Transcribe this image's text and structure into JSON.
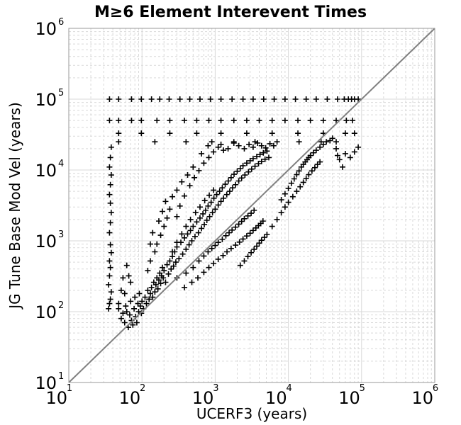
{
  "chart_data": {
    "type": "scatter",
    "title": "M≥6 Element Interevent Times",
    "xlabel": "UCERF3 (years)",
    "ylabel": "JG Tune Base Mod Vel (years)",
    "xscale": "log",
    "yscale": "log",
    "xlim": [
      10,
      1000000
    ],
    "ylim": [
      10,
      1000000
    ],
    "grid": true,
    "marker": "+",
    "colors": {
      "points": "#000000",
      "reference_line": "#808080",
      "grid": "#d9d9d9",
      "frame": "#999999"
    },
    "reference_line": {
      "label": "y = x",
      "from": [
        10,
        10
      ],
      "to": [
        1000000,
        1000000
      ]
    },
    "x_ticks": [
      {
        "base": "10",
        "exp": "1"
      },
      {
        "base": "10",
        "exp": "2"
      },
      {
        "base": "10",
        "exp": "3"
      },
      {
        "base": "10",
        "exp": "4"
      },
      {
        "base": "10",
        "exp": "5"
      },
      {
        "base": "10",
        "exp": "6"
      }
    ],
    "y_ticks": [
      {
        "base": "10",
        "exp": "1"
      },
      {
        "base": "10",
        "exp": "2"
      },
      {
        "base": "10",
        "exp": "3"
      },
      {
        "base": "10",
        "exp": "4"
      },
      {
        "base": "10",
        "exp": "5"
      },
      {
        "base": "10",
        "exp": "6"
      }
    ],
    "points": [
      [
        35,
        110
      ],
      [
        36,
        130
      ],
      [
        37,
        150
      ],
      [
        38,
        190
      ],
      [
        35,
        240
      ],
      [
        36,
        320
      ],
      [
        37,
        420
      ],
      [
        36,
        520
      ],
      [
        38,
        680
      ],
      [
        37,
        880
      ],
      [
        36,
        1300
      ],
      [
        37,
        1800
      ],
      [
        38,
        2500
      ],
      [
        37,
        3400
      ],
      [
        36,
        4500
      ],
      [
        37,
        6200
      ],
      [
        38,
        8500
      ],
      [
        36,
        11000
      ],
      [
        37,
        15000
      ],
      [
        38,
        21000
      ],
      [
        36,
        50000
      ],
      [
        36,
        100000
      ],
      [
        48,
        100000
      ],
      [
        72,
        100000
      ],
      [
        98,
        100000
      ],
      [
        135,
        100000
      ],
      [
        175,
        100000
      ],
      [
        235,
        100000
      ],
      [
        330,
        100000
      ],
      [
        450,
        100000
      ],
      [
        620,
        100000
      ],
      [
        860,
        100000
      ],
      [
        1200,
        100000
      ],
      [
        1700,
        100000
      ],
      [
        2400,
        100000
      ],
      [
        3300,
        100000
      ],
      [
        4600,
        100000
      ],
      [
        6400,
        100000
      ],
      [
        9000,
        100000
      ],
      [
        12500,
        100000
      ],
      [
        17500,
        100000
      ],
      [
        24000,
        100000
      ],
      [
        34000,
        100000
      ],
      [
        47000,
        100000
      ],
      [
        58000,
        100000
      ],
      [
        66000,
        100000
      ],
      [
        73000,
        100000
      ],
      [
        80000,
        100000
      ],
      [
        90000,
        100000
      ],
      [
        48,
        50000
      ],
      [
        72,
        50000
      ],
      [
        98,
        50000
      ],
      [
        160,
        50000
      ],
      [
        240,
        50000
      ],
      [
        380,
        50000
      ],
      [
        560,
        50000
      ],
      [
        820,
        50000
      ],
      [
        1200,
        50000
      ],
      [
        1800,
        50000
      ],
      [
        2700,
        50000
      ],
      [
        4000,
        50000
      ],
      [
        6000,
        50000
      ],
      [
        9000,
        50000
      ],
      [
        13500,
        50000
      ],
      [
        20000,
        50000
      ],
      [
        30000,
        50000
      ],
      [
        45000,
        50000
      ],
      [
        62000,
        50000
      ],
      [
        75000,
        50000
      ],
      [
        48,
        33000
      ],
      [
        98,
        33000
      ],
      [
        240,
        33000
      ],
      [
        560,
        33000
      ],
      [
        1200,
        33000
      ],
      [
        2700,
        33000
      ],
      [
        6000,
        33000
      ],
      [
        13500,
        33000
      ],
      [
        30000,
        33000
      ],
      [
        60000,
        33000
      ],
      [
        80000,
        33000
      ],
      [
        48,
        25000
      ],
      [
        150,
        25000
      ],
      [
        400,
        25000
      ],
      [
        900,
        25000
      ],
      [
        1800,
        25000
      ],
      [
        3500,
        25000
      ],
      [
        7000,
        25000
      ],
      [
        14000,
        25000
      ],
      [
        28000,
        25000
      ],
      [
        45000,
        25000
      ],
      [
        48,
        110
      ],
      [
        52,
        80
      ],
      [
        55,
        95
      ],
      [
        58,
        70
      ],
      [
        60,
        120
      ],
      [
        62,
        100
      ],
      [
        65,
        60
      ],
      [
        68,
        90
      ],
      [
        70,
        140
      ],
      [
        72,
        75
      ],
      [
        75,
        65
      ],
      [
        78,
        110
      ],
      [
        80,
        160
      ],
      [
        82,
        85
      ],
      [
        85,
        70
      ],
      [
        88,
        130
      ],
      [
        90,
        100
      ],
      [
        92,
        180
      ],
      [
        95,
        120
      ],
      [
        98,
        95
      ],
      [
        100,
        140
      ],
      [
        105,
        110
      ],
      [
        110,
        160
      ],
      [
        115,
        130
      ],
      [
        120,
        200
      ],
      [
        125,
        150
      ],
      [
        130,
        180
      ],
      [
        135,
        220
      ],
      [
        140,
        160
      ],
      [
        145,
        260
      ],
      [
        150,
        190
      ],
      [
        155,
        240
      ],
      [
        160,
        300
      ],
      [
        165,
        210
      ],
      [
        170,
        280
      ],
      [
        175,
        350
      ],
      [
        180,
        250
      ],
      [
        185,
        320
      ],
      [
        190,
        420
      ],
      [
        195,
        300
      ],
      [
        200,
        380
      ],
      [
        210,
        260
      ],
      [
        220,
        460
      ],
      [
        230,
        340
      ],
      [
        240,
        520
      ],
      [
        250,
        400
      ],
      [
        260,
        600
      ],
      [
        270,
        440
      ],
      [
        280,
        700
      ],
      [
        290,
        500
      ],
      [
        300,
        820
      ],
      [
        320,
        560
      ],
      [
        340,
        950
      ],
      [
        360,
        650
      ],
      [
        380,
        1100
      ],
      [
        400,
        760
      ],
      [
        420,
        1250
      ],
      [
        440,
        880
      ],
      [
        460,
        1400
      ],
      [
        480,
        1000
      ],
      [
        500,
        1600
      ],
      [
        530,
        1150
      ],
      [
        560,
        1850
      ],
      [
        590,
        1300
      ],
      [
        620,
        2100
      ],
      [
        650,
        1500
      ],
      [
        680,
        2400
      ],
      [
        710,
        1700
      ],
      [
        740,
        2700
      ],
      [
        770,
        1950
      ],
      [
        800,
        3100
      ],
      [
        840,
        2200
      ],
      [
        880,
        3500
      ],
      [
        920,
        2500
      ],
      [
        960,
        4000
      ],
      [
        1000,
        2800
      ],
      [
        1050,
        4500
      ],
      [
        1100,
        3200
      ],
      [
        1150,
        5000
      ],
      [
        1200,
        3600
      ],
      [
        1250,
        5600
      ],
      [
        1300,
        4000
      ],
      [
        1370,
        6300
      ],
      [
        1440,
        4500
      ],
      [
        1510,
        7000
      ],
      [
        1580,
        5000
      ],
      [
        1650,
        7800
      ],
      [
        1730,
        5600
      ],
      [
        1810,
        8700
      ],
      [
        1900,
        6200
      ],
      [
        2000,
        9600
      ],
      [
        2100,
        7000
      ],
      [
        2200,
        10500
      ],
      [
        2300,
        7700
      ],
      [
        2400,
        11500
      ],
      [
        2550,
        8500
      ],
      [
        2700,
        12500
      ],
      [
        2850,
        9400
      ],
      [
        3000,
        13500
      ],
      [
        3150,
        10300
      ],
      [
        3300,
        14500
      ],
      [
        3500,
        11300
      ],
      [
        3700,
        15500
      ],
      [
        3900,
        12300
      ],
      [
        4100,
        16500
      ],
      [
        4300,
        13200
      ],
      [
        4550,
        17500
      ],
      [
        4800,
        14200
      ],
      [
        5100,
        18500
      ],
      [
        5400,
        15000
      ],
      [
        300,
        300
      ],
      [
        400,
        350
      ],
      [
        500,
        420
      ],
      [
        600,
        520
      ],
      [
        700,
        610
      ],
      [
        800,
        700
      ],
      [
        900,
        780
      ],
      [
        1000,
        860
      ],
      [
        1100,
        950
      ],
      [
        1250,
        1050
      ],
      [
        1400,
        1180
      ],
      [
        1550,
        1300
      ],
      [
        1700,
        1420
      ],
      [
        1900,
        1560
      ],
      [
        2100,
        1720
      ],
      [
        2300,
        1880
      ],
      [
        2500,
        2050
      ],
      [
        2800,
        2250
      ],
      [
        3100,
        2450
      ],
      [
        3400,
        2700
      ],
      [
        380,
        220
      ],
      [
        480,
        260
      ],
      [
        580,
        300
      ],
      [
        700,
        360
      ],
      [
        820,
        420
      ],
      [
        950,
        480
      ],
      [
        1100,
        550
      ],
      [
        1280,
        620
      ],
      [
        1450,
        700
      ],
      [
        1650,
        780
      ],
      [
        1900,
        870
      ],
      [
        2150,
        960
      ],
      [
        2400,
        1060
      ],
      [
        2700,
        1170
      ],
      [
        3000,
        1280
      ],
      [
        3300,
        1400
      ],
      [
        3600,
        1520
      ],
      [
        3900,
        1640
      ],
      [
        4200,
        1760
      ],
      [
        4500,
        1900
      ],
      [
        2200,
        450
      ],
      [
        2500,
        520
      ],
      [
        2800,
        600
      ],
      [
        3100,
        680
      ],
      [
        3400,
        760
      ],
      [
        3700,
        840
      ],
      [
        4000,
        930
      ],
      [
        4300,
        1020
      ],
      [
        4700,
        1120
      ],
      [
        5100,
        1230
      ],
      [
        8000,
        3800
      ],
      [
        9000,
        4600
      ],
      [
        10000,
        5500
      ],
      [
        11000,
        6500
      ],
      [
        12000,
        7500
      ],
      [
        13000,
        8600
      ],
      [
        14000,
        9700
      ],
      [
        15000,
        11000
      ],
      [
        16000,
        12000
      ],
      [
        17000,
        13000
      ],
      [
        18000,
        14000
      ],
      [
        19000,
        15000
      ],
      [
        20000,
        16000
      ],
      [
        22000,
        17500
      ],
      [
        24000,
        19000
      ],
      [
        27000,
        21000
      ],
      [
        30000,
        23000
      ],
      [
        33000,
        25000
      ],
      [
        37000,
        26000
      ],
      [
        40000,
        28000
      ],
      [
        6000,
        1600
      ],
      [
        7000,
        2000
      ],
      [
        8000,
        2500
      ],
      [
        9000,
        3000
      ],
      [
        10000,
        3500
      ],
      [
        11500,
        4200
      ],
      [
        13000,
        5000
      ],
      [
        14500,
        5800
      ],
      [
        16000,
        6700
      ],
      [
        17500,
        7600
      ],
      [
        19000,
        8600
      ],
      [
        21000,
        9700
      ],
      [
        23000,
        10800
      ],
      [
        25000,
        12000
      ],
      [
        27000,
        13000
      ],
      [
        45000,
        20000
      ],
      [
        47000,
        16000
      ],
      [
        50000,
        14000
      ],
      [
        60000,
        17000
      ],
      [
        70000,
        15000
      ],
      [
        80000,
        18000
      ],
      [
        90000,
        21000
      ],
      [
        55000,
        11000
      ],
      [
        48,
        130
      ],
      [
        52,
        200
      ],
      [
        55,
        300
      ],
      [
        58,
        180
      ],
      [
        62,
        450
      ],
      [
        66,
        320
      ],
      [
        70,
        260
      ],
      [
        120,
        380
      ],
      [
        130,
        520
      ],
      [
        150,
        700
      ],
      [
        160,
        900
      ],
      [
        180,
        1200
      ],
      [
        200,
        1600
      ],
      [
        220,
        2100
      ],
      [
        240,
        2800
      ],
      [
        130,
        900
      ],
      [
        140,
        1300
      ],
      [
        170,
        1900
      ],
      [
        190,
        2600
      ],
      [
        210,
        3600
      ],
      [
        260,
        4200
      ],
      [
        300,
        5200
      ],
      [
        350,
        6800
      ],
      [
        420,
        8500
      ],
      [
        500,
        11000
      ],
      [
        300,
        2200
      ],
      [
        330,
        3100
      ],
      [
        380,
        4300
      ],
      [
        450,
        6000
      ],
      [
        520,
        7800
      ],
      [
        600,
        9800
      ],
      [
        700,
        12500
      ],
      [
        820,
        15000
      ],
      [
        950,
        18000
      ],
      [
        1100,
        21000
      ],
      [
        1200,
        23000
      ],
      [
        1300,
        19000
      ],
      [
        1500,
        20000
      ],
      [
        800,
        22000
      ],
      [
        650,
        17000
      ],
      [
        1800,
        24000
      ],
      [
        2100,
        22000
      ],
      [
        2500,
        20000
      ],
      [
        2900,
        23000
      ],
      [
        3300,
        21000
      ],
      [
        3800,
        24000
      ],
      [
        4300,
        22000
      ],
      [
        4900,
        20500
      ],
      [
        5600,
        23500
      ],
      [
        6300,
        22000
      ],
      [
        260,
        700
      ],
      [
        300,
        950
      ],
      [
        350,
        1250
      ],
      [
        400,
        1600
      ],
      [
        460,
        2000
      ],
      [
        540,
        2500
      ],
      [
        620,
        3000
      ],
      [
        720,
        3700
      ],
      [
        830,
        4400
      ],
      [
        950,
        5200
      ]
    ]
  }
}
